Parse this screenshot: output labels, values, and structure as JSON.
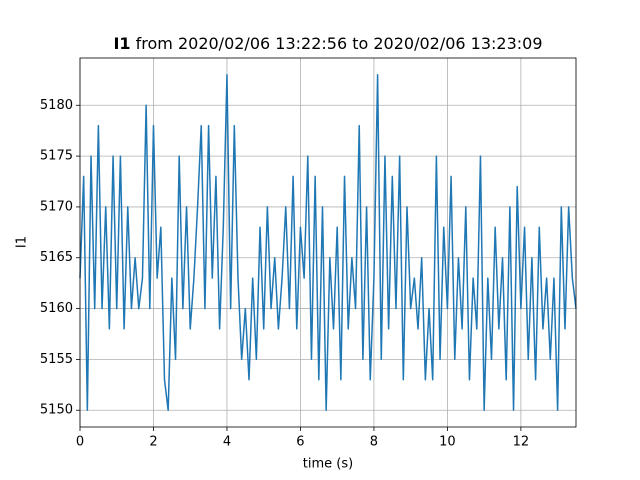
{
  "chart_data": {
    "type": "line",
    "title_parts": [
      "I1",
      "from 2020/02/06 13:22:56 to 2020/02/06 13:23:09"
    ],
    "xlabel": "time (s)",
    "ylabel": "I1",
    "xlim": [
      0,
      13.5
    ],
    "ylim": [
      5148.35,
      5184.65
    ],
    "xticks": [
      0,
      2,
      4,
      6,
      8,
      10,
      12
    ],
    "yticks": [
      5150,
      5155,
      5160,
      5165,
      5170,
      5175,
      5180
    ],
    "grid": true,
    "series": [
      {
        "name": "I1",
        "color": "#1f77b4",
        "x": [
          0,
          0.1,
          0.2,
          0.3,
          0.4,
          0.5,
          0.6,
          0.7,
          0.8,
          0.9,
          1,
          1.1,
          1.2,
          1.3,
          1.4,
          1.5,
          1.6,
          1.7,
          1.8,
          1.9,
          2,
          2.1,
          2.2,
          2.3,
          2.4,
          2.5,
          2.6,
          2.7,
          2.8,
          2.9,
          3,
          3.1,
          3.2,
          3.3,
          3.4,
          3.5,
          3.6,
          3.7,
          3.8,
          3.9,
          4,
          4.1,
          4.2,
          4.3,
          4.4,
          4.5,
          4.6,
          4.7,
          4.8,
          4.9,
          5,
          5.1,
          5.2,
          5.3,
          5.4,
          5.5,
          5.6,
          5.7,
          5.8,
          5.9,
          6,
          6.1,
          6.2,
          6.3,
          6.4,
          6.5,
          6.6,
          6.7,
          6.8,
          6.9,
          7,
          7.1,
          7.2,
          7.3,
          7.4,
          7.5,
          7.6,
          7.7,
          7.8,
          7.9,
          8,
          8.1,
          8.2,
          8.3,
          8.4,
          8.5,
          8.6,
          8.7,
          8.8,
          8.9,
          9,
          9.1,
          9.2,
          9.3,
          9.4,
          9.5,
          9.6,
          9.7,
          9.8,
          9.9,
          10,
          10.1,
          10.2,
          10.3,
          10.4,
          10.5,
          10.6,
          10.7,
          10.8,
          10.9,
          11,
          11.1,
          11.2,
          11.3,
          11.4,
          11.5,
          11.6,
          11.7,
          11.8,
          11.9,
          12,
          12.1,
          12.2,
          12.3,
          12.4,
          12.5,
          12.6,
          12.7,
          12.8,
          12.9,
          13,
          13.1,
          13.2,
          13.3,
          13.4,
          13.5
        ],
        "values": [
          5163,
          5173,
          5150,
          5175,
          5160,
          5178,
          5160,
          5170,
          5158,
          5175,
          5160,
          5175,
          5158,
          5170,
          5160,
          5165,
          5160,
          5163,
          5180,
          5160,
          5178,
          5163,
          5168,
          5153,
          5150,
          5163,
          5155,
          5175,
          5160,
          5170,
          5158,
          5163,
          5170,
          5178,
          5160,
          5178,
          5163,
          5173,
          5158,
          5168,
          5183,
          5160,
          5178,
          5163,
          5155,
          5160,
          5153,
          5163,
          5155,
          5168,
          5158,
          5170,
          5160,
          5165,
          5158,
          5163,
          5170,
          5160,
          5173,
          5158,
          5168,
          5163,
          5175,
          5155,
          5173,
          5153,
          5170,
          5150,
          5165,
          5158,
          5168,
          5153,
          5173,
          5158,
          5165,
          5160,
          5178,
          5155,
          5170,
          5153,
          5163,
          5183,
          5155,
          5175,
          5158,
          5173,
          5160,
          5175,
          5153,
          5170,
          5160,
          5163,
          5158,
          5165,
          5153,
          5160,
          5153,
          5175,
          5155,
          5168,
          5160,
          5173,
          5155,
          5165,
          5158,
          5170,
          5153,
          5163,
          5158,
          5175,
          5150,
          5163,
          5155,
          5168,
          5158,
          5165,
          5153,
          5170,
          5150,
          5172,
          5160,
          5168,
          5155,
          5165,
          5153,
          5168,
          5158,
          5163,
          5155,
          5163,
          5150,
          5170,
          5158,
          5170,
          5163,
          5160
        ]
      }
    ]
  }
}
